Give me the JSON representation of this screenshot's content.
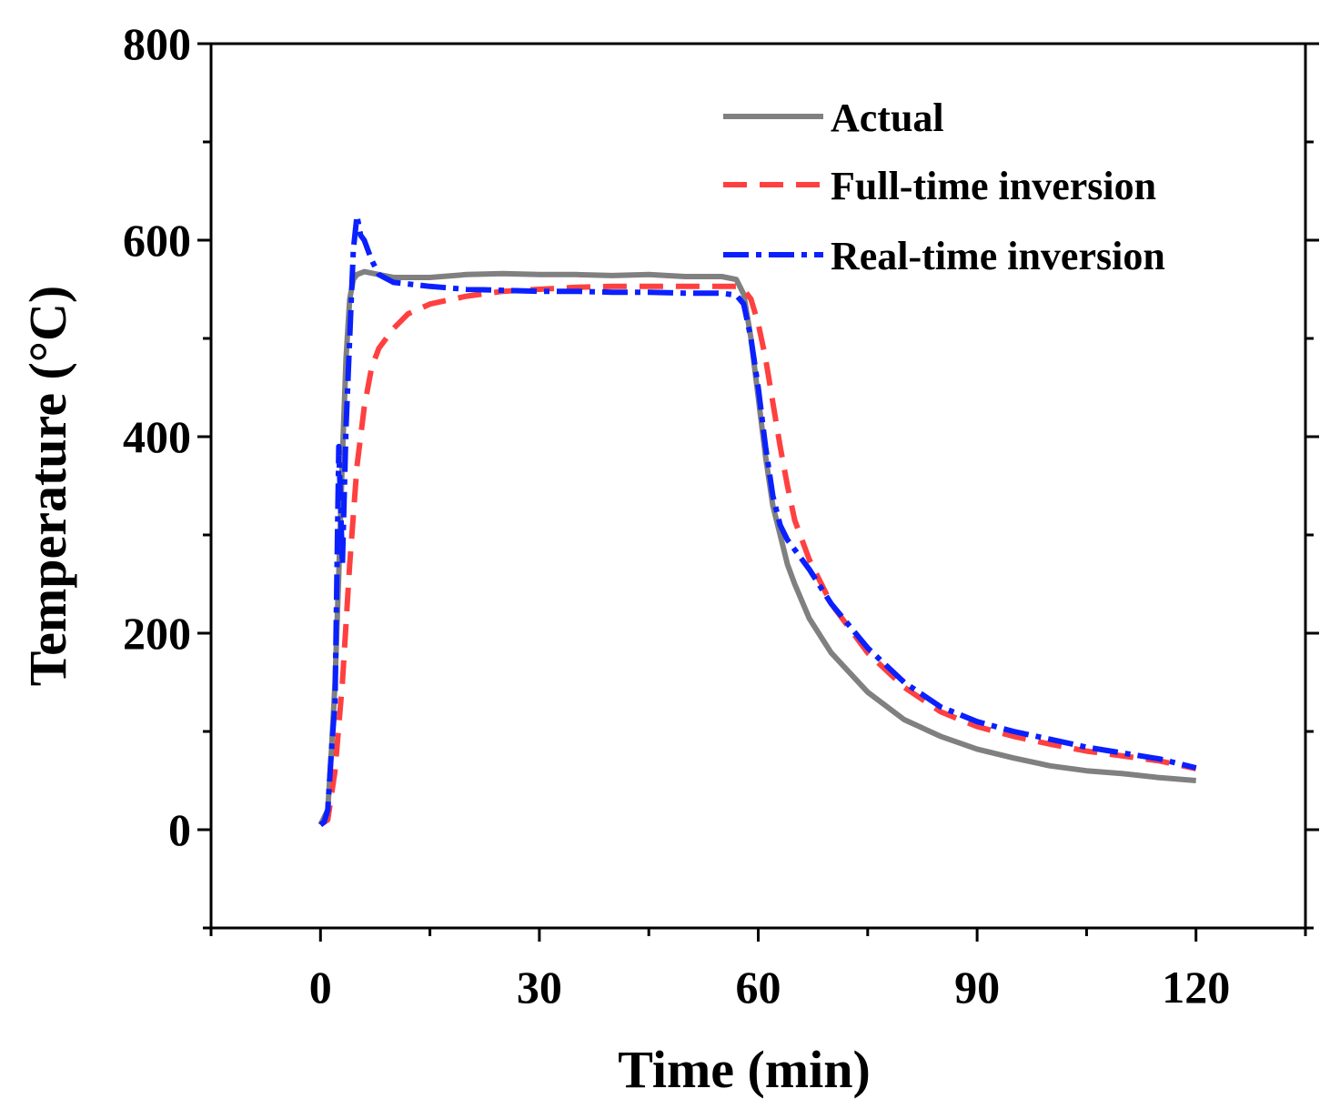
{
  "chart_data": {
    "type": "line",
    "title": "",
    "xlabel": "Time (min)",
    "ylabel": "Temperature (°C)",
    "xlim": [
      -15,
      135
    ],
    "ylim": [
      -100,
      800
    ],
    "xticks": [
      0,
      30,
      60,
      90,
      120
    ],
    "xtick_labels": [
      "0",
      "30",
      "60",
      "90",
      "120"
    ],
    "yticks": [
      0,
      200,
      400,
      600,
      800
    ],
    "ytick_labels": [
      "0",
      "200",
      "400",
      "600",
      "800"
    ],
    "grid": false,
    "legend_position": "top-right",
    "series": [
      {
        "name": "Actual",
        "color": "#808080",
        "dash": "solid",
        "x": [
          0,
          1,
          1.5,
          2,
          2.5,
          3,
          3.5,
          4,
          4.5,
          5,
          6,
          8,
          10,
          15,
          20,
          25,
          30,
          35,
          40,
          45,
          50,
          55,
          57,
          58,
          59,
          60,
          61,
          62,
          63,
          64,
          65,
          67,
          70,
          75,
          80,
          85,
          90,
          95,
          100,
          105,
          110,
          115,
          120
        ],
        "y": [
          5,
          20,
          80,
          150,
          260,
          380,
          480,
          540,
          560,
          565,
          568,
          565,
          562,
          562,
          565,
          566,
          565,
          565,
          564,
          565,
          563,
          563,
          560,
          545,
          500,
          440,
          380,
          330,
          300,
          270,
          250,
          215,
          180,
          140,
          112,
          95,
          82,
          73,
          65,
          60,
          57,
          53,
          50
        ]
      },
      {
        "name": "Full-time inversion",
        "color": "#ff4040",
        "dash": "dashed",
        "x": [
          0,
          1,
          2,
          3,
          4,
          5,
          6,
          7,
          8,
          10,
          12,
          15,
          20,
          25,
          30,
          35,
          40,
          45,
          48,
          50,
          55,
          57,
          58,
          59,
          60,
          61,
          62,
          63,
          64,
          65,
          67,
          70,
          75,
          80,
          85,
          90,
          95,
          100,
          105,
          110,
          115,
          120
        ],
        "y": [
          5,
          10,
          60,
          150,
          270,
          370,
          430,
          470,
          490,
          510,
          525,
          535,
          543,
          548,
          550,
          552,
          553,
          553,
          553,
          553,
          553,
          553,
          550,
          540,
          515,
          480,
          435,
          390,
          350,
          315,
          275,
          230,
          180,
          145,
          120,
          105,
          95,
          87,
          80,
          75,
          70,
          62
        ]
      },
      {
        "name": "Real-time inversion",
        "color": "#0a20ff",
        "dash": "dashdot",
        "x": [
          0,
          0.5,
          1,
          1.5,
          2,
          2.5,
          3,
          3.5,
          4,
          4.5,
          5,
          5.5,
          6,
          7,
          8,
          10,
          15,
          20,
          25,
          30,
          35,
          40,
          45,
          50,
          55,
          57,
          58,
          59,
          60,
          61,
          62,
          63,
          64,
          65,
          67,
          70,
          75,
          80,
          85,
          90,
          95,
          100,
          105,
          110,
          115,
          120
        ],
        "y": [
          5,
          8,
          20,
          80,
          130,
          390,
          270,
          410,
          500,
          590,
          625,
          605,
          600,
          580,
          565,
          557,
          553,
          550,
          549,
          548,
          548,
          547,
          547,
          546,
          546,
          544,
          535,
          500,
          450,
          390,
          340,
          310,
          295,
          285,
          265,
          230,
          185,
          150,
          125,
          110,
          100,
          92,
          84,
          78,
          72,
          63
        ]
      }
    ]
  }
}
